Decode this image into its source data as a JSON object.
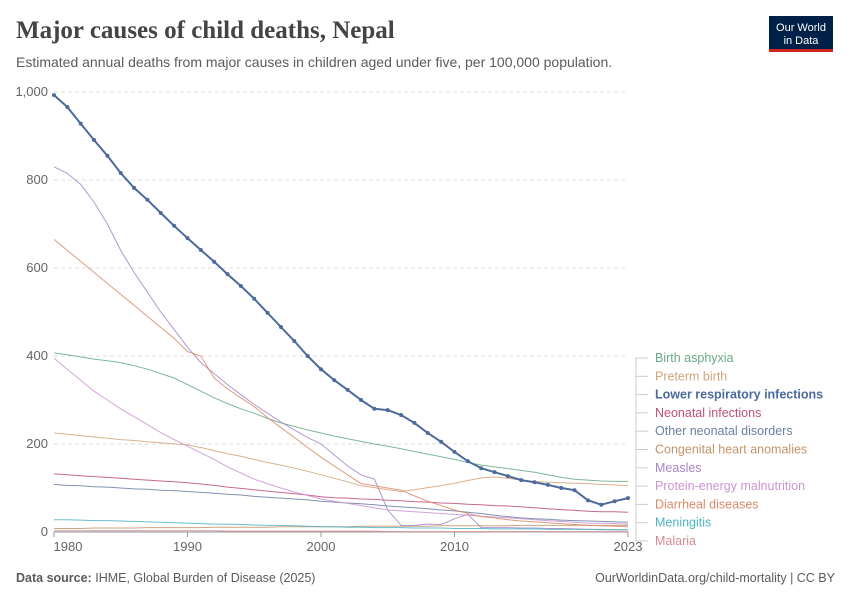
{
  "chart_data": {
    "type": "line",
    "title": "Major causes of child deaths, Nepal",
    "subtitle": "Estimated annual deaths from major causes in children aged under five, per 100,000 population.",
    "logo": [
      "Our World",
      "in Data"
    ],
    "source_label": "Data source:",
    "source": "IHME, Global Burden of Disease (2025)",
    "footer_right": "OurWorldinData.org/child-mortality | CC BY",
    "xlim": [
      1980,
      2023
    ],
    "ylim": [
      0,
      1000
    ],
    "xticks": [
      1980,
      1990,
      2000,
      2010,
      2023
    ],
    "yticks": [
      0,
      200,
      400,
      600,
      800,
      {
        "value": 1000,
        "label": "1,000"
      }
    ],
    "grid": true,
    "x": [
      1980,
      1981,
      1982,
      1983,
      1984,
      1985,
      1986,
      1987,
      1988,
      1989,
      1990,
      1991,
      1992,
      1993,
      1994,
      1995,
      1996,
      1997,
      1998,
      1999,
      2000,
      2001,
      2002,
      2003,
      2004,
      2005,
      2006,
      2007,
      2008,
      2009,
      2010,
      2011,
      2012,
      2013,
      2014,
      2015,
      2016,
      2017,
      2018,
      2019,
      2020,
      2021,
      2022,
      2023
    ],
    "series": [
      {
        "name": "Birth asphyxia",
        "color": "#6aa98a",
        "values": [
          407,
          403,
          398,
          393,
          389,
          385,
          378,
          370,
          360,
          350,
          335,
          320,
          305,
          292,
          280,
          270,
          258,
          248,
          240,
          232,
          225,
          218,
          212,
          206,
          200,
          195,
          189,
          183,
          177,
          171,
          165,
          158,
          152,
          148,
          144,
          140,
          136,
          130,
          124,
          120,
          118,
          116,
          115,
          115
        ]
      },
      {
        "name": "Preterm birth",
        "color": "#d2a57c",
        "values": [
          225,
          222,
          219,
          216,
          213,
          210,
          208,
          205,
          203,
          200,
          198,
          192,
          185,
          178,
          172,
          165,
          158,
          152,
          145,
          138,
          130,
          122,
          114,
          105,
          101,
          96,
          92,
          96,
          101,
          105,
          111,
          117,
          123,
          125,
          122,
          118,
          115,
          113,
          112,
          111,
          110,
          108,
          107,
          105
        ]
      },
      {
        "name": "Lower respiratory infections",
        "color": "#4c6a9c",
        "highlighted": true,
        "values": [
          993,
          966,
          928,
          891,
          855,
          816,
          782,
          755,
          725,
          696,
          668,
          641,
          614,
          586,
          559,
          530,
          498,
          466,
          434,
          400,
          370,
          345,
          323,
          300,
          280,
          277,
          266,
          248,
          225,
          205,
          182,
          161,
          145,
          136,
          127,
          118,
          113,
          107,
          100,
          95,
          72,
          62,
          70,
          77
        ]
      },
      {
        "name": "Neonatal infections",
        "color": "#c0507a",
        "values": [
          132,
          130,
          128,
          126,
          124,
          122,
          120,
          118,
          116,
          114,
          112,
          109,
          106,
          102,
          99,
          96,
          93,
          90,
          87,
          84,
          80,
          78,
          77,
          75,
          74,
          72,
          71,
          69,
          68,
          66,
          65,
          63,
          62,
          60,
          59,
          57,
          55,
          53,
          51,
          49,
          47,
          46,
          46,
          45
        ]
      },
      {
        "name": "Other neonatal disorders",
        "color": "#6c7ea6",
        "values": [
          108,
          106,
          105,
          103,
          102,
          100,
          98,
          97,
          95,
          94,
          92,
          90,
          88,
          86,
          84,
          81,
          79,
          77,
          75,
          73,
          70,
          68,
          66,
          64,
          62,
          59,
          57,
          55,
          53,
          50,
          48,
          45,
          42,
          38,
          35,
          32,
          30,
          29,
          27,
          26,
          25,
          24,
          23,
          22
        ]
      },
      {
        "name": "Congenital heart anomalies",
        "color": "#c4956a",
        "values": [
          8,
          8,
          8,
          9,
          9,
          9,
          9,
          10,
          10,
          10,
          10,
          10,
          11,
          11,
          11,
          11,
          11,
          12,
          12,
          12,
          12,
          12,
          12,
          13,
          13,
          13,
          13,
          13,
          13,
          14,
          14,
          14,
          14,
          14,
          14,
          15,
          15,
          15,
          15,
          15,
          15,
          15,
          15,
          15
        ]
      },
      {
        "name": "Measles",
        "color": "#a486c8",
        "values": [
          830,
          815,
          790,
          750,
          700,
          640,
          590,
          545,
          500,
          460,
          420,
          385,
          360,
          335,
          312,
          290,
          270,
          250,
          232,
          215,
          200,
          175,
          150,
          130,
          120,
          50,
          15,
          15,
          18,
          17,
          30,
          40,
          10,
          10,
          10,
          9,
          9,
          8,
          8,
          7,
          6,
          6,
          5,
          5
        ]
      },
      {
        "name": "Protein-energy malnutrition",
        "color": "#cc94d2",
        "values": [
          395,
          370,
          345,
          320,
          300,
          280,
          262,
          244,
          226,
          210,
          195,
          180,
          165,
          148,
          134,
          120,
          110,
          100,
          91,
          83,
          75,
          70,
          65,
          60,
          55,
          50,
          48,
          46,
          44,
          42,
          40,
          38,
          36,
          34,
          32,
          30,
          28,
          26,
          24,
          22,
          20,
          20,
          19,
          18
        ]
      },
      {
        "name": "Diarrheal diseases",
        "color": "#d98a68",
        "values": [
          665,
          640,
          615,
          590,
          565,
          540,
          515,
          490,
          465,
          440,
          410,
          400,
          350,
          325,
          305,
          285,
          260,
          237,
          215,
          192,
          170,
          150,
          130,
          110,
          105,
          100,
          95,
          82,
          70,
          60,
          50,
          42,
          35,
          32,
          28,
          25,
          23,
          21,
          19,
          17,
          15,
          14,
          13,
          12
        ]
      },
      {
        "name": "Meningitis",
        "color": "#4db4c2",
        "values": [
          28,
          28,
          27,
          26,
          26,
          25,
          24,
          23,
          22,
          21,
          20,
          19,
          18,
          18,
          17,
          16,
          15,
          15,
          14,
          13,
          12,
          12,
          11,
          11,
          10,
          10,
          10,
          9,
          9,
          9,
          8,
          8,
          8,
          7,
          7,
          7,
          7,
          6,
          6,
          6,
          6,
          5,
          5,
          5
        ]
      },
      {
        "name": "Malaria",
        "color": "#d48b93",
        "values": [
          3,
          3,
          3,
          3,
          3,
          3,
          3,
          3,
          3,
          3,
          3,
          3,
          3,
          2,
          2,
          2,
          2,
          2,
          2,
          2,
          2,
          2,
          2,
          2,
          2,
          1,
          1,
          1,
          1,
          1,
          1,
          1,
          1,
          1,
          1,
          1,
          1,
          1,
          1,
          1,
          1,
          1,
          1,
          1
        ]
      }
    ]
  }
}
